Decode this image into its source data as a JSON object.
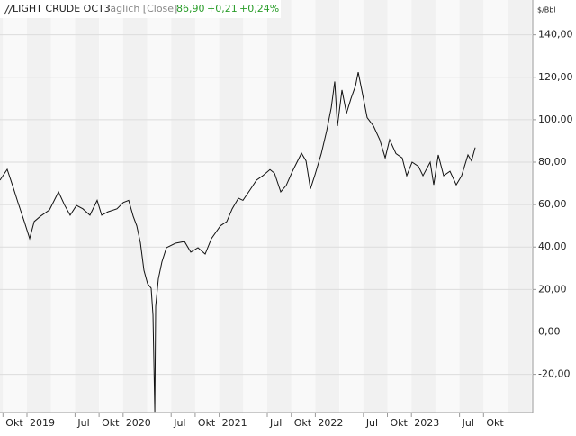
{
  "chart_data": {
    "type": "line",
    "title": "LIGHT CRUDE OCT3",
    "subtitle": "Täglich [Close]",
    "last": "86,90",
    "change": "+0,21",
    "change_pct": "+0,24%",
    "y_unit": "$/Bbl",
    "xlim": [
      2018.719,
      2024.262
    ],
    "ylim": [
      -38,
      156.4
    ],
    "xticks": [
      {
        "value": 2018.75,
        "label": "Okt"
      },
      2019,
      {
        "value": 2019.5,
        "label": "Jul"
      },
      {
        "value": 2019.75,
        "label": "Okt"
      },
      2020,
      {
        "value": 2020.5,
        "label": "Jul"
      },
      {
        "value": 2020.75,
        "label": "Okt"
      },
      2021,
      {
        "value": 2021.5,
        "label": "Jul"
      },
      {
        "value": 2021.75,
        "label": "Okt"
      },
      2022,
      {
        "value": 2022.5,
        "label": "Jul"
      },
      {
        "value": 2022.75,
        "label": "Okt"
      },
      2023,
      {
        "value": 2023.5,
        "label": "Jul"
      },
      {
        "value": 2023.75,
        "label": "Okt"
      }
    ],
    "yticks": [
      {
        "value": -20,
        "label": "-20,00"
      },
      {
        "value": 0,
        "label": "0,00"
      },
      {
        "value": 20,
        "label": "20,00"
      },
      {
        "value": 40,
        "label": "40,00"
      },
      {
        "value": 60,
        "label": "60,00"
      },
      {
        "value": 80,
        "label": "80,00"
      },
      {
        "value": 100,
        "label": "100,00"
      },
      {
        "value": 120,
        "label": "120,00"
      },
      {
        "value": 140,
        "label": "140,00"
      }
    ],
    "grid": true,
    "x": [
      2018.719,
      2018.794,
      2018.85,
      2018.906,
      2018.972,
      2019.028,
      2019.075,
      2019.14,
      2019.234,
      2019.328,
      2019.393,
      2019.449,
      2019.515,
      2019.581,
      2019.655,
      2019.73,
      2019.777,
      2019.843,
      2019.936,
      2020.002,
      2020.058,
      2020.105,
      2020.142,
      2020.18,
      2020.217,
      2020.255,
      2020.292,
      2020.311,
      2020.33,
      2020.339,
      2020.367,
      2020.404,
      2020.451,
      2020.545,
      2020.639,
      2020.704,
      2020.779,
      2020.854,
      2020.919,
      2021.013,
      2021.079,
      2021.135,
      2021.2,
      2021.247,
      2021.322,
      2021.388,
      2021.453,
      2021.528,
      2021.575,
      2021.64,
      2021.697,
      2021.762,
      2021.856,
      2021.903,
      2021.949,
      2021.996,
      2022.062,
      2022.118,
      2022.165,
      2022.202,
      2022.23,
      2022.277,
      2022.324,
      2022.371,
      2022.418,
      2022.446,
      2022.483,
      2022.539,
      2022.605,
      2022.67,
      2022.727,
      2022.773,
      2022.839,
      2022.904,
      2022.951,
      2023.007,
      2023.073,
      2023.12,
      2023.195,
      2023.232,
      2023.279,
      2023.335,
      2023.401,
      2023.466,
      2023.522,
      2023.588,
      2023.625,
      2023.663
    ],
    "series": [
      {
        "name": "LIGHT CRUDE OCT3",
        "color": "#111111",
        "values": [
          71.5,
          76.6,
          69,
          61,
          52,
          44,
          52,
          54.5,
          57.5,
          66,
          59.6,
          55,
          59.6,
          58,
          55,
          62,
          55,
          56.6,
          58,
          61,
          62,
          54.5,
          50,
          42,
          29,
          22.7,
          20.6,
          8,
          -37.6,
          12,
          25,
          33,
          39.7,
          41.8,
          42.6,
          37.6,
          39.7,
          36.7,
          44,
          50,
          52,
          58,
          63,
          62,
          67,
          71.5,
          73.6,
          76.5,
          74.8,
          66,
          69,
          75.7,
          84.2,
          80.6,
          67.4,
          74,
          84,
          94.8,
          105.5,
          118,
          97,
          114,
          103,
          110,
          116,
          122.4,
          114,
          101,
          97,
          90.6,
          82,
          90.6,
          84,
          82,
          73.6,
          80,
          78,
          73.6,
          80,
          69.3,
          83.4,
          73.6,
          75.7,
          69.3,
          73.6,
          83.4,
          80.6,
          86.9
        ]
      }
    ]
  }
}
